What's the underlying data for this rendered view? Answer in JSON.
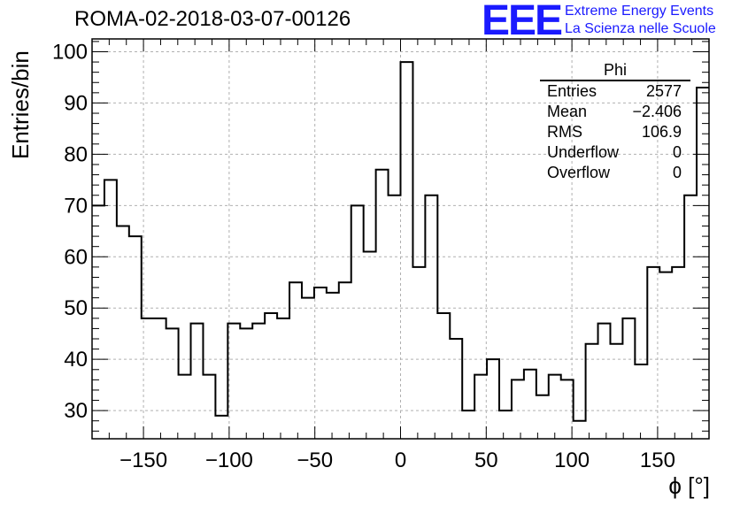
{
  "title": "ROMA-02-2018-03-07-00126",
  "logo": {
    "mark": "EEE",
    "line1": "Extreme Energy Events",
    "line2": "La Scienza nelle Scuole"
  },
  "stats_box": {
    "title": "Phi",
    "rows": [
      {
        "label": "Entries",
        "value": "2577"
      },
      {
        "label": "Mean",
        "value": "−2.406"
      },
      {
        "label": "RMS",
        "value": "106.9"
      },
      {
        "label": "Underflow",
        "value": "0"
      },
      {
        "label": "Overflow",
        "value": "0"
      }
    ]
  },
  "chart_data": {
    "type": "histogram",
    "title": "ROMA-02-2018-03-07-00126",
    "xlabel": "ϕ [°]",
    "ylabel": "Entries/bin",
    "xlim": [
      -180,
      180
    ],
    "ylim": [
      24.5,
      102.5
    ],
    "bin_width": 7.2,
    "bin_edges_start": -180,
    "values": [
      70,
      75,
      66,
      64,
      48,
      48,
      46,
      37,
      47,
      37,
      29,
      47,
      46,
      47,
      49,
      48,
      55,
      52,
      54,
      53,
      55,
      70,
      61,
      77,
      72,
      98,
      58,
      72,
      49,
      44,
      30,
      37,
      40,
      30,
      36,
      38,
      33,
      37,
      36,
      28,
      43,
      47,
      43,
      48,
      39,
      58,
      57,
      58,
      72,
      93
    ],
    "x_ticks": [
      -150,
      -100,
      -50,
      0,
      50,
      100,
      150
    ],
    "y_ticks": [
      30,
      40,
      50,
      60,
      70,
      80,
      90,
      100
    ],
    "grid": true,
    "stats_position": "top-right"
  }
}
